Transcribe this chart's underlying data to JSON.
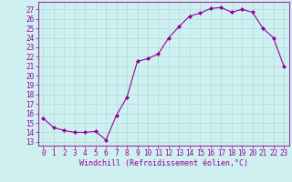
{
  "x": [
    0,
    1,
    2,
    3,
    4,
    5,
    6,
    7,
    8,
    9,
    10,
    11,
    12,
    13,
    14,
    15,
    16,
    17,
    18,
    19,
    20,
    21,
    22,
    23
  ],
  "y": [
    15.5,
    14.5,
    14.2,
    14.0,
    14.0,
    14.1,
    13.2,
    15.8,
    17.7,
    21.5,
    21.8,
    22.3,
    24.0,
    25.2,
    26.3,
    26.6,
    27.1,
    27.2,
    26.7,
    27.0,
    26.7,
    25.0,
    24.0,
    21.0
  ],
  "line_color": "#990099",
  "marker": "D",
  "marker_size": 2.0,
  "bg_color": "#cff0f0",
  "grid_color": "#aadddd",
  "xlabel": "Windchill (Refroidissement éolien,°C)",
  "xlabel_fontsize": 6.0,
  "ytick_labels": [
    "13",
    "14",
    "15",
    "16",
    "17",
    "18",
    "19",
    "20",
    "21",
    "22",
    "23",
    "24",
    "25",
    "26",
    "27"
  ],
  "ytick_values": [
    13,
    14,
    15,
    16,
    17,
    18,
    19,
    20,
    21,
    22,
    23,
    24,
    25,
    26,
    27
  ],
  "ylim": [
    12.6,
    27.8
  ],
  "xlim": [
    -0.5,
    23.5
  ],
  "tick_fontsize": 5.5,
  "spine_color": "#993399"
}
